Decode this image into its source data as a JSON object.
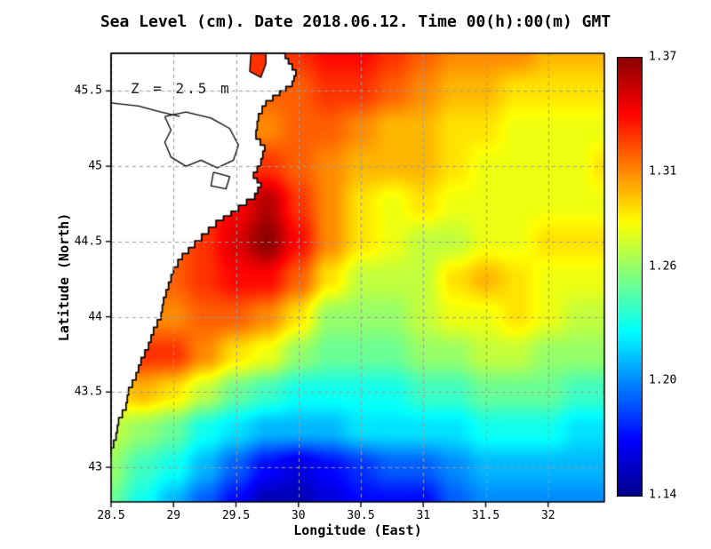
{
  "title": "Sea Level (cm). Date 2018.06.12. Time 00(h):00(m) GMT",
  "annotation": "Z = 2.5 m",
  "xlabel": "Longitude (East)",
  "ylabel": "Latitude (North)",
  "chart_data": {
    "type": "heatmap",
    "title": "Sea Level (cm). Date 2018.06.12. Time 00(h):00(m) GMT",
    "xlabel": "Longitude (East)",
    "ylabel": "Latitude (North)",
    "annotation": "Z = 2.5 m",
    "colormap": "jet",
    "grid_on": true,
    "lon_range": [
      28.5,
      32.45
    ],
    "lat_range": [
      42.77,
      45.75
    ],
    "value_range": [
      1.14,
      1.37
    ],
    "x_tick_labels": [
      "28.5",
      "29",
      "29.5",
      "30",
      "30.5",
      "31",
      "31.5",
      "32"
    ],
    "x_tick_values": [
      28.5,
      29,
      29.5,
      30,
      30.5,
      31,
      31.5,
      32
    ],
    "y_tick_labels": [
      "43",
      "43.5",
      "44",
      "44.5",
      "45",
      "45.5"
    ],
    "y_tick_values": [
      43,
      43.5,
      44,
      44.5,
      45,
      45.5
    ],
    "colorbar_tick_labels": [
      "1.37",
      "1.31",
      "1.26",
      "1.20",
      "1.14"
    ],
    "colorbar_tick_values": [
      1.37,
      1.31,
      1.26,
      1.2,
      1.14
    ],
    "grid_lons": [
      28.5,
      28.75,
      29.0,
      29.25,
      29.5,
      29.75,
      30.0,
      30.25,
      30.5,
      30.75,
      31.0,
      31.25,
      31.5,
      31.75,
      32.0,
      32.25,
      32.45
    ],
    "grid_lats": [
      45.75,
      45.5,
      45.25,
      45.0,
      44.75,
      44.5,
      44.25,
      44.0,
      43.75,
      43.5,
      43.25,
      43.0,
      42.77
    ],
    "values": [
      [
        1.32,
        1.32,
        1.32,
        1.32,
        1.32,
        1.33,
        1.33,
        1.34,
        1.34,
        1.33,
        1.32,
        1.31,
        1.31,
        1.31,
        1.3,
        1.3,
        1.3
      ],
      [
        1.31,
        1.31,
        1.31,
        1.31,
        1.32,
        1.32,
        1.32,
        1.33,
        1.33,
        1.32,
        1.31,
        1.3,
        1.3,
        1.29,
        1.29,
        1.29,
        1.29
      ],
      [
        1.3,
        1.3,
        1.3,
        1.3,
        1.31,
        1.31,
        1.32,
        1.32,
        1.31,
        1.3,
        1.3,
        1.29,
        1.29,
        1.28,
        1.28,
        1.28,
        1.28
      ],
      [
        1.31,
        1.31,
        1.31,
        1.32,
        1.33,
        1.33,
        1.32,
        1.31,
        1.3,
        1.3,
        1.3,
        1.29,
        1.28,
        1.28,
        1.28,
        1.28,
        1.29
      ],
      [
        1.32,
        1.32,
        1.32,
        1.33,
        1.34,
        1.36,
        1.33,
        1.31,
        1.29,
        1.28,
        1.29,
        1.28,
        1.28,
        1.28,
        1.28,
        1.28,
        1.28
      ],
      [
        1.32,
        1.32,
        1.32,
        1.33,
        1.35,
        1.37,
        1.34,
        1.31,
        1.29,
        1.28,
        1.27,
        1.27,
        1.28,
        1.28,
        1.29,
        1.29,
        1.29
      ],
      [
        1.31,
        1.31,
        1.32,
        1.33,
        1.34,
        1.34,
        1.32,
        1.29,
        1.27,
        1.27,
        1.27,
        1.29,
        1.3,
        1.29,
        1.28,
        1.28,
        1.28
      ],
      [
        1.3,
        1.31,
        1.31,
        1.32,
        1.32,
        1.31,
        1.29,
        1.26,
        1.26,
        1.26,
        1.27,
        1.28,
        1.28,
        1.29,
        1.28,
        1.27,
        1.27
      ],
      [
        1.31,
        1.33,
        1.33,
        1.31,
        1.29,
        1.28,
        1.26,
        1.25,
        1.25,
        1.25,
        1.26,
        1.26,
        1.27,
        1.27,
        1.26,
        1.26,
        1.26
      ],
      [
        1.29,
        1.3,
        1.29,
        1.27,
        1.25,
        1.24,
        1.23,
        1.23,
        1.23,
        1.23,
        1.24,
        1.24,
        1.25,
        1.25,
        1.25,
        1.24,
        1.24
      ],
      [
        1.27,
        1.26,
        1.25,
        1.23,
        1.22,
        1.21,
        1.21,
        1.21,
        1.22,
        1.22,
        1.22,
        1.22,
        1.23,
        1.23,
        1.23,
        1.22,
        1.22
      ],
      [
        1.26,
        1.24,
        1.23,
        1.21,
        1.19,
        1.17,
        1.16,
        1.17,
        1.18,
        1.19,
        1.19,
        1.2,
        1.21,
        1.21,
        1.21,
        1.21,
        1.21
      ],
      [
        1.25,
        1.23,
        1.21,
        1.19,
        1.17,
        1.15,
        1.15,
        1.16,
        1.17,
        1.17,
        1.17,
        1.19,
        1.2,
        1.2,
        1.2,
        1.2,
        1.2
      ]
    ],
    "land_polygon": [
      [
        29.87,
        45.75
      ],
      [
        29.92,
        45.68
      ],
      [
        29.98,
        45.6
      ],
      [
        29.95,
        45.53
      ],
      [
        29.85,
        45.47
      ],
      [
        29.74,
        45.4
      ],
      [
        29.68,
        45.3
      ],
      [
        29.66,
        45.18
      ],
      [
        29.73,
        45.1
      ],
      [
        29.7,
        45.0
      ],
      [
        29.64,
        44.92
      ],
      [
        29.7,
        44.86
      ],
      [
        29.65,
        44.78
      ],
      [
        29.52,
        44.7
      ],
      [
        29.4,
        44.64
      ],
      [
        29.28,
        44.55
      ],
      [
        29.17,
        44.46
      ],
      [
        29.07,
        44.38
      ],
      [
        29.0,
        44.28
      ],
      [
        28.96,
        44.18
      ],
      [
        28.92,
        44.08
      ],
      [
        28.9,
        43.98
      ],
      [
        28.84,
        43.88
      ],
      [
        28.8,
        43.78
      ],
      [
        28.74,
        43.68
      ],
      [
        28.7,
        43.58
      ],
      [
        28.64,
        43.48
      ],
      [
        28.62,
        43.38
      ],
      [
        28.56,
        43.28
      ],
      [
        28.54,
        43.18
      ],
      [
        28.5,
        43.08
      ],
      [
        28.5,
        45.75
      ]
    ],
    "lagoon_outlines": [
      [
        [
          28.93,
          45.33
        ],
        [
          29.1,
          45.36
        ],
        [
          29.3,
          45.32
        ],
        [
          29.45,
          45.25
        ],
        [
          29.52,
          45.14
        ],
        [
          29.48,
          45.04
        ],
        [
          29.35,
          44.99
        ],
        [
          29.22,
          45.04
        ],
        [
          29.1,
          45.0
        ],
        [
          28.98,
          45.06
        ],
        [
          28.93,
          45.16
        ],
        [
          28.98,
          45.24
        ],
        [
          28.93,
          45.33
        ]
      ],
      [
        [
          29.32,
          44.96
        ],
        [
          29.45,
          44.93
        ],
        [
          29.42,
          44.85
        ],
        [
          29.3,
          44.87
        ],
        [
          29.32,
          44.96
        ]
      ]
    ],
    "river_lines": [
      [
        [
          28.5,
          45.42
        ],
        [
          28.72,
          45.4
        ],
        [
          28.9,
          45.36
        ],
        [
          29.05,
          45.33
        ]
      ]
    ],
    "inlet": {
      "polygon": [
        [
          29.62,
          45.75
        ],
        [
          29.61,
          45.63
        ],
        [
          29.7,
          45.59
        ],
        [
          29.74,
          45.68
        ],
        [
          29.74,
          45.75
        ]
      ],
      "value": 1.33
    }
  }
}
